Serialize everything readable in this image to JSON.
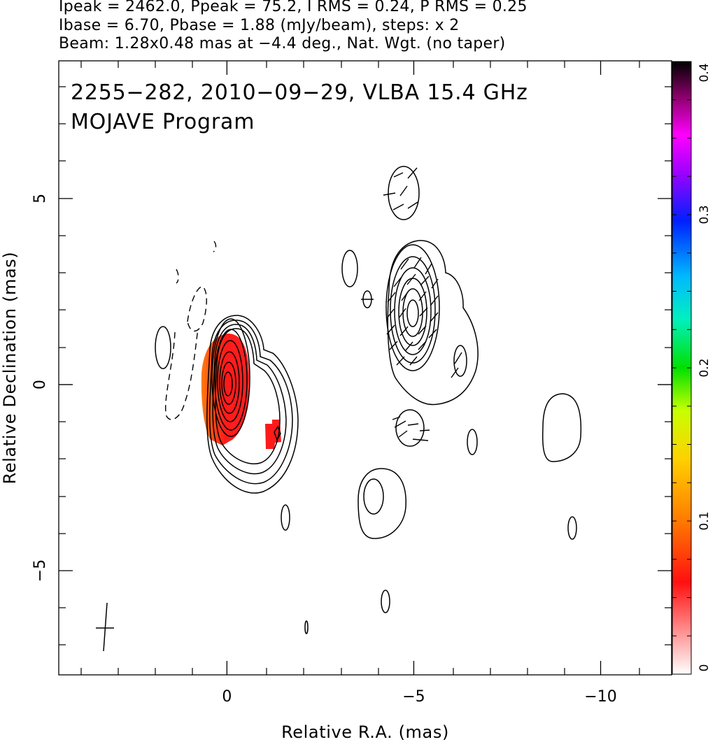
{
  "header": {
    "line1": "Ipeak = 2462.0, Ppeak = 75.2, I RMS = 0.24, P RMS = 0.25",
    "line2": "Ibase = 6.70, Pbase = 1.88 (mJy/beam), steps: x 2",
    "line3": "Beam: 1.28x0.48 mas at −4.4 deg., Nat. Wgt. (no taper)"
  },
  "plot": {
    "title_line1": "2255−282, 2010−09−29, VLBA 15.4 GHz",
    "title_line2": "MOJAVE Program"
  },
  "chart_data": {
    "type": "contour",
    "xlabel": "Relative R.A. (mas)",
    "ylabel": "Relative Declination (mas)",
    "xlim": [
      4.5,
      -11.9
    ],
    "ylim": [
      -7.8,
      8.7
    ],
    "x_ticks": [
      {
        "value": 0,
        "label": "0"
      },
      {
        "value": -5,
        "label": "−5"
      },
      {
        "value": -10,
        "label": "−10"
      }
    ],
    "y_ticks": [
      {
        "value": 5,
        "label": "5"
      },
      {
        "value": 0,
        "label": "0"
      },
      {
        "value": -5,
        "label": "−5"
      }
    ],
    "colorbar": {
      "min": 0,
      "max": 0.4,
      "ticks": [
        {
          "value": 0,
          "label": "0"
        },
        {
          "value": 0.1,
          "label": "0.1"
        },
        {
          "value": 0.2,
          "label": "0.2"
        },
        {
          "value": 0.3,
          "label": "0.3"
        },
        {
          "value": 0.4,
          "label": "0.4"
        }
      ]
    },
    "colors": {
      "contour": "#000000",
      "pol_red": "#ff1a1a",
      "pol_orange": "#ff7a10"
    },
    "core": {
      "x": 0.0,
      "y": 0.0
    },
    "beam": {
      "major_mas": 1.28,
      "minor_mas": 0.48,
      "pa_deg": -4.4
    }
  }
}
